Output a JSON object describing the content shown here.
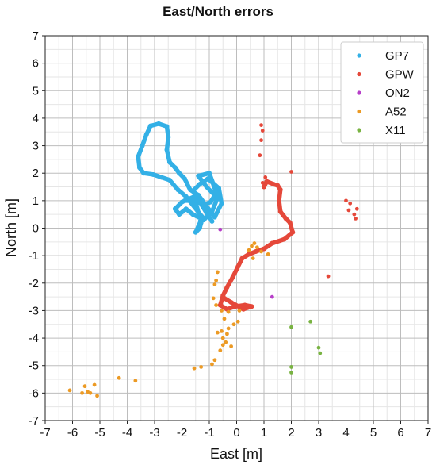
{
  "chart_data": {
    "type": "scatter",
    "title": "East/North errors",
    "xlabel": "East [m]",
    "ylabel": "North [m]",
    "xlim": [
      -7,
      7
    ],
    "ylim": [
      -7,
      7
    ],
    "xticks": [
      "-7",
      "-6",
      "-5",
      "-4",
      "-3",
      "-2",
      "-1",
      "0",
      "1",
      "2",
      "3",
      "4",
      "5",
      "6",
      "7"
    ],
    "yticks": [
      "7",
      "6",
      "5",
      "4",
      "3",
      "2",
      "1",
      "0",
      "-1",
      "-2",
      "-3",
      "-4",
      "-5",
      "-6",
      "-7"
    ],
    "grid": true,
    "minor_grid": true,
    "legend_position": "top-right",
    "series": [
      {
        "name": "GP7",
        "color": "#33b0e6",
        "style": "dense-track",
        "points": [
          [
            -1.9,
            1.0
          ],
          [
            -1.5,
            1.0
          ],
          [
            -1.2,
            0.85
          ],
          [
            -0.95,
            0.95
          ],
          [
            -0.8,
            1.2
          ],
          [
            -1.1,
            1.5
          ],
          [
            -1.4,
            1.9
          ],
          [
            -1.0,
            2.0
          ],
          [
            -0.85,
            1.6
          ],
          [
            -0.7,
            1.1
          ],
          [
            -0.9,
            0.6
          ],
          [
            -1.2,
            0.3
          ],
          [
            -1.6,
            0.5
          ],
          [
            -1.85,
            0.7
          ],
          [
            -2.1,
            0.5
          ],
          [
            -2.25,
            0.7
          ],
          [
            -2.0,
            0.95
          ],
          [
            -1.55,
            1.15
          ],
          [
            -1.3,
            0.2
          ],
          [
            -1.35,
            0.0
          ],
          [
            -1.5,
            -0.15
          ],
          [
            -1.25,
            0.4
          ],
          [
            -1.85,
            1.15
          ],
          [
            -2.15,
            1.4
          ],
          [
            -2.45,
            1.75
          ],
          [
            -2.75,
            1.85
          ],
          [
            -3.05,
            1.95
          ],
          [
            -3.4,
            2.0
          ],
          [
            -3.55,
            2.2
          ],
          [
            -3.6,
            2.6
          ],
          [
            -3.45,
            3.0
          ],
          [
            -3.3,
            3.4
          ],
          [
            -3.15,
            3.72
          ],
          [
            -2.85,
            3.8
          ],
          [
            -2.55,
            3.7
          ],
          [
            -2.5,
            3.3
          ],
          [
            -2.55,
            2.85
          ],
          [
            -2.45,
            2.4
          ],
          [
            -2.25,
            2.2
          ],
          [
            -2.1,
            2.0
          ],
          [
            -1.9,
            1.8
          ],
          [
            -1.7,
            1.4
          ],
          [
            -1.4,
            1.2
          ],
          [
            -0.8,
            0.4
          ],
          [
            -0.55,
            0.9
          ],
          [
            -0.65,
            1.45
          ],
          [
            -1.05,
            1.8
          ],
          [
            -1.35,
            1.6
          ],
          [
            -1.6,
            1.35
          ],
          [
            -1.1,
            0.55
          ],
          [
            -0.9,
            0.25
          ]
        ]
      },
      {
        "name": "GPW",
        "color": "#e5483a",
        "style": "dense-track",
        "points": [
          [
            1.0,
            1.5
          ],
          [
            1.1,
            1.7
          ],
          [
            1.35,
            1.6
          ],
          [
            1.5,
            1.55
          ],
          [
            1.6,
            1.4
          ],
          [
            1.55,
            1.0
          ],
          [
            1.6,
            0.6
          ],
          [
            1.8,
            0.35
          ],
          [
            1.95,
            0.2
          ],
          [
            2.05,
            -0.15
          ],
          [
            1.75,
            -0.4
          ],
          [
            1.3,
            -0.55
          ],
          [
            1.0,
            -0.75
          ],
          [
            0.7,
            -0.85
          ],
          [
            0.45,
            -0.95
          ],
          [
            0.2,
            -1.1
          ],
          [
            0.05,
            -1.4
          ],
          [
            -0.15,
            -1.8
          ],
          [
            -0.35,
            -2.15
          ],
          [
            -0.5,
            -2.45
          ],
          [
            -0.6,
            -2.8
          ],
          [
            -0.35,
            -2.95
          ],
          [
            -0.05,
            -2.85
          ],
          [
            0.3,
            -2.8
          ],
          [
            0.55,
            -2.85
          ],
          [
            0.25,
            -2.95
          ],
          [
            -0.2,
            -2.7
          ],
          [
            -0.45,
            -2.55
          ]
        ],
        "scattered": [
          [
            0.9,
            3.75
          ],
          [
            0.95,
            3.55
          ],
          [
            0.9,
            3.2
          ],
          [
            0.85,
            2.65
          ],
          [
            2.0,
            2.05
          ],
          [
            4.0,
            1.0
          ],
          [
            4.15,
            0.9
          ],
          [
            4.4,
            0.7
          ],
          [
            4.1,
            0.65
          ],
          [
            4.3,
            0.5
          ],
          [
            4.35,
            0.35
          ],
          [
            3.35,
            -1.75
          ],
          [
            0.95,
            1.65
          ],
          [
            1.05,
            1.85
          ]
        ]
      },
      {
        "name": "ON2",
        "color": "#b73ec9",
        "style": "scatter",
        "points": [
          [
            -0.6,
            -0.05
          ],
          [
            1.3,
            -2.5
          ]
        ]
      },
      {
        "name": "A52",
        "color": "#ec9a24",
        "style": "scatter",
        "points": [
          [
            0.55,
            -0.65
          ],
          [
            0.75,
            -0.7
          ],
          [
            0.65,
            -0.55
          ],
          [
            0.9,
            -0.85
          ],
          [
            1.15,
            -0.95
          ],
          [
            0.45,
            -0.8
          ],
          [
            0.6,
            -1.1
          ],
          [
            -0.7,
            -1.6
          ],
          [
            -0.75,
            -1.9
          ],
          [
            -0.8,
            -2.05
          ],
          [
            -0.85,
            -2.55
          ],
          [
            -0.75,
            -2.8
          ],
          [
            -0.55,
            -3.0
          ],
          [
            -0.3,
            -3.05
          ],
          [
            0.1,
            -3.0
          ],
          [
            -0.1,
            -3.5
          ],
          [
            -0.3,
            -3.65
          ],
          [
            -0.55,
            -3.75
          ],
          [
            -0.5,
            -4.0
          ],
          [
            -0.5,
            -4.25
          ],
          [
            -0.6,
            -4.45
          ],
          [
            -0.7,
            -3.8
          ],
          [
            -0.35,
            -3.85
          ],
          [
            -0.4,
            -4.15
          ],
          [
            -0.8,
            -4.8
          ],
          [
            -0.9,
            -4.95
          ],
          [
            -1.3,
            -5.05
          ],
          [
            -1.55,
            -5.1
          ],
          [
            -3.7,
            -5.55
          ],
          [
            -4.3,
            -5.45
          ],
          [
            -5.2,
            -5.7
          ],
          [
            -5.55,
            -5.75
          ],
          [
            -5.45,
            -5.95
          ],
          [
            -5.35,
            -6.0
          ],
          [
            -5.1,
            -6.1
          ],
          [
            -5.65,
            -6.0
          ],
          [
            -6.1,
            -5.9
          ],
          [
            -0.45,
            -3.3
          ],
          [
            0.05,
            -3.4
          ],
          [
            -0.2,
            -4.3
          ]
        ]
      },
      {
        "name": "X11",
        "color": "#79b342",
        "style": "scatter",
        "points": [
          [
            2.0,
            -3.6
          ],
          [
            2.7,
            -3.4
          ],
          [
            3.0,
            -4.35
          ],
          [
            3.05,
            -4.55
          ],
          [
            2.0,
            -5.05
          ],
          [
            2.0,
            -5.25
          ]
        ]
      }
    ]
  }
}
